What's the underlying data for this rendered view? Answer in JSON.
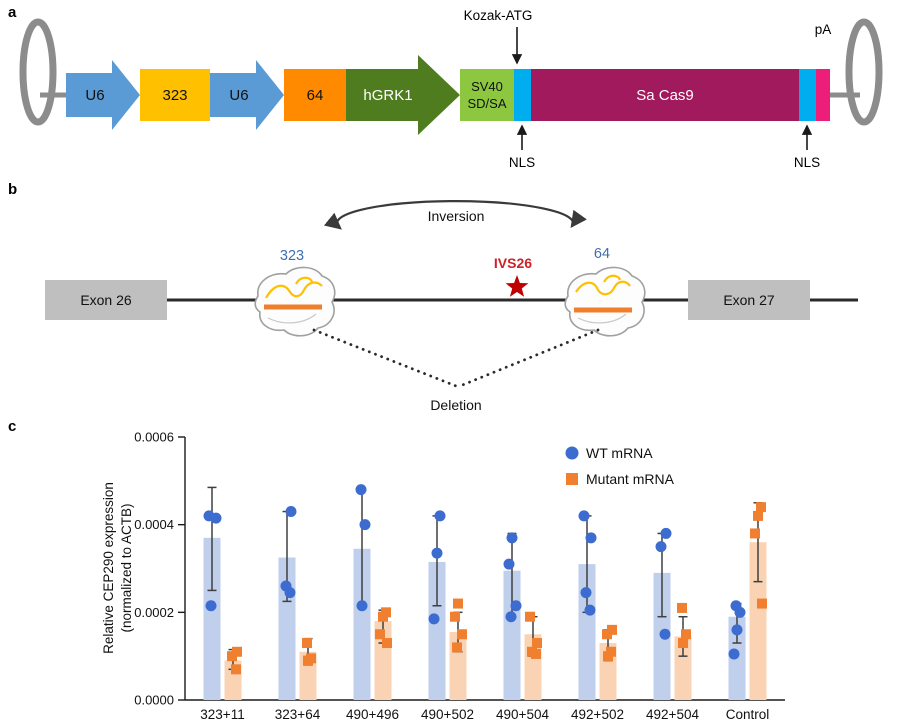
{
  "panels": {
    "a": "a",
    "b": "b",
    "c": "c"
  },
  "panel_a": {
    "u6": "U6",
    "spacer_323": "323",
    "spacer_64": "64",
    "hgrk1": "hGRK1",
    "sv40_line1": "SV40",
    "sv40_line2": "SD/SA",
    "sacas9": "Sa Cas9",
    "kozak_atg": "Kozak-ATG",
    "pa": "pA",
    "nls": "NLS",
    "colors": {
      "u6_arrow": "#5B9BD5",
      "box_323": "#FFC000",
      "box_64": "#FF8A00",
      "hgrk1_arrow": "#4E7C1F",
      "sv40_box": "#8DC63F",
      "nls_box": "#00AEEF",
      "sacas9_box": "#A21A5E",
      "pa_box": "#EC1E79",
      "itr": "#8C8C8C"
    }
  },
  "panel_b": {
    "exon_26": "Exon 26",
    "exon_27": "Exon 27",
    "guide_323": "323",
    "guide_64": "64",
    "ivs26": "IVS26",
    "inversion": "Inversion",
    "deletion": "Deletion",
    "colors": {
      "exon_box": "#BFBFBF",
      "star": "#C00000",
      "guide_label": "#3E6FB0",
      "mutation_label": "#D12026"
    }
  },
  "chart_data": {
    "type": "bar",
    "title": "",
    "ylabel_line1": "Relative CEP290 expression",
    "ylabel_line2": "(normalized to ACTB)",
    "ylim": [
      0,
      0.0006
    ],
    "yticks": [
      0,
      0.0002,
      0.0004,
      0.0006
    ],
    "ytick_labels": [
      "0.0000",
      "0.0002",
      "0.0004",
      "0.0006"
    ],
    "categories": [
      "323+11",
      "323+64",
      "490+496",
      "490+502",
      "490+504",
      "492+502",
      "492+504",
      "Control"
    ],
    "grid": false,
    "legend_position": "top-right-inside",
    "series": [
      {
        "name": "WT mRNA",
        "marker": "circle",
        "bar_color": "#BFCFEC",
        "point_color": "#3C6CCF",
        "means": [
          0.00037,
          0.000325,
          0.000345,
          0.000315,
          0.000295,
          0.00031,
          0.00029,
          0.00019
        ],
        "error_low": [
          0.00025,
          0.000225,
          0.00022,
          0.000215,
          0.00019,
          0.0002,
          0.00019,
          0.00013
        ],
        "error_high": [
          0.000485,
          0.00043,
          0.00048,
          0.00042,
          0.00038,
          0.00042,
          0.00038,
          0.00022
        ],
        "points": [
          [
            0.00042,
            0.000415,
            0.000215
          ],
          [
            0.00043,
            0.00026,
            0.000245
          ],
          [
            0.00048,
            0.0004,
            0.000215
          ],
          [
            0.00042,
            0.000335,
            0.000185
          ],
          [
            0.00037,
            0.00031,
            0.000215,
            0.00019
          ],
          [
            0.00042,
            0.00037,
            0.000245,
            0.000205
          ],
          [
            0.00038,
            0.00035,
            0.00015
          ],
          [
            0.000215,
            0.0002,
            0.00016,
            0.000105
          ]
        ]
      },
      {
        "name": "Mutant mRNA",
        "marker": "square",
        "bar_color": "#F9D3B4",
        "point_color": "#F08030",
        "means": [
          9e-05,
          0.00011,
          0.00018,
          0.000155,
          0.00015,
          0.00013,
          0.000145,
          0.00036
        ],
        "error_low": [
          7e-05,
          8e-05,
          0.00013,
          0.00011,
          0.0001,
          9e-05,
          0.0001,
          0.00027
        ],
        "error_high": [
          0.000115,
          0.00014,
          0.000205,
          0.0002,
          0.00019,
          0.00016,
          0.00019,
          0.00045
        ],
        "points": [
          [
            0.00011,
            0.0001,
            7e-05
          ],
          [
            0.00013,
            9.5e-05,
            9e-05
          ],
          [
            0.0002,
            0.00019,
            0.00015,
            0.00013
          ],
          [
            0.00022,
            0.00019,
            0.00015,
            0.00012
          ],
          [
            0.00019,
            0.00013,
            0.00011,
            0.000105
          ],
          [
            0.00016,
            0.00015,
            0.00011,
            0.0001
          ],
          [
            0.00021,
            0.00015,
            0.00013
          ],
          [
            0.00044,
            0.00042,
            0.00038,
            0.00022
          ]
        ]
      }
    ]
  }
}
